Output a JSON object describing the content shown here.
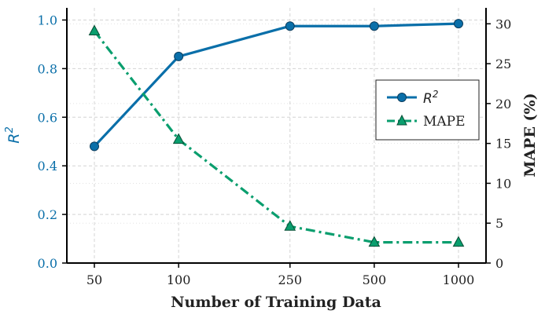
{
  "chart_data": {
    "type": "line",
    "title": "",
    "xlabel": "Number of Training Data",
    "x_scale": "log",
    "categories": [
      "50",
      "100",
      "250",
      "500",
      "1000"
    ],
    "x": [
      50,
      100,
      250,
      500,
      1000
    ],
    "y_left": {
      "label_base": "R",
      "label_sup": "2",
      "ylim": [
        0,
        1.05
      ],
      "ticks": [
        "0.0",
        "0.2",
        "0.4",
        "0.6",
        "0.8",
        "1.0"
      ],
      "color": "#0a6fa9"
    },
    "y_right": {
      "label": "MAPE (%)",
      "ylim": [
        0,
        32
      ],
      "ticks": [
        "0",
        "5",
        "10",
        "15",
        "20",
        "25",
        "30"
      ],
      "color": "#222222"
    },
    "series": [
      {
        "name": "R2",
        "axis": "left",
        "values": [
          0.48,
          0.85,
          0.975,
          0.975,
          0.985
        ],
        "color": "#0a6fa9",
        "marker": "circle",
        "line_style": "solid"
      },
      {
        "name": "MAPE",
        "axis": "right",
        "values": [
          29.1,
          15.5,
          4.6,
          2.6,
          2.6
        ],
        "color": "#0a9e6e",
        "marker": "triangle",
        "line_style": "dashdot"
      }
    ],
    "legend": {
      "placement": "center-right",
      "entries": [
        {
          "base": "R",
          "sup": "2"
        },
        {
          "base": "MAPE",
          "sup": ""
        }
      ]
    },
    "grid": true
  }
}
